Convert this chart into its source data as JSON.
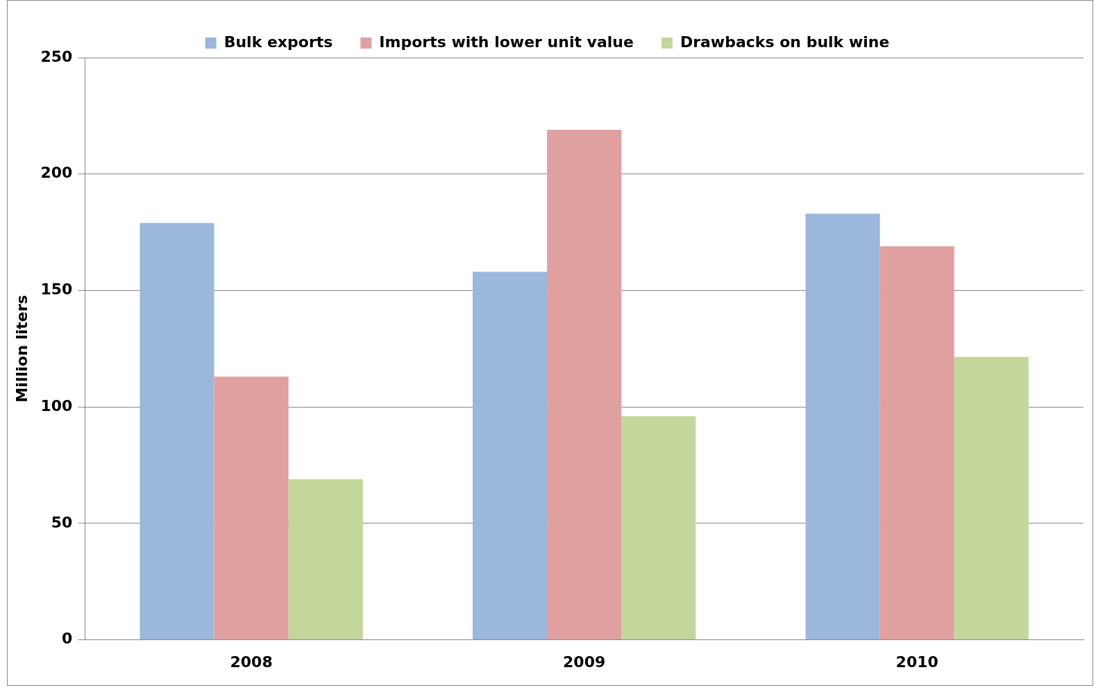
{
  "chart_data": {
    "type": "bar",
    "ylabel": "Million liters",
    "categories": [
      "2008",
      "2009",
      "2010"
    ],
    "series": [
      {
        "name": "Bulk exports",
        "color": "#9bb7db",
        "values": [
          179,
          158,
          183
        ]
      },
      {
        "name": "Imports with lower unit value",
        "color": "#e0a0a0",
        "values": [
          113,
          219,
          169
        ]
      },
      {
        "name": "Drawbacks on bulk wine",
        "color": "#c4d79b",
        "values": [
          69,
          96,
          121.5
        ]
      }
    ],
    "ylim": [
      0,
      250
    ],
    "yticks": [
      0,
      50,
      100,
      150,
      200,
      250
    ],
    "grid": "y",
    "legend": "top"
  }
}
